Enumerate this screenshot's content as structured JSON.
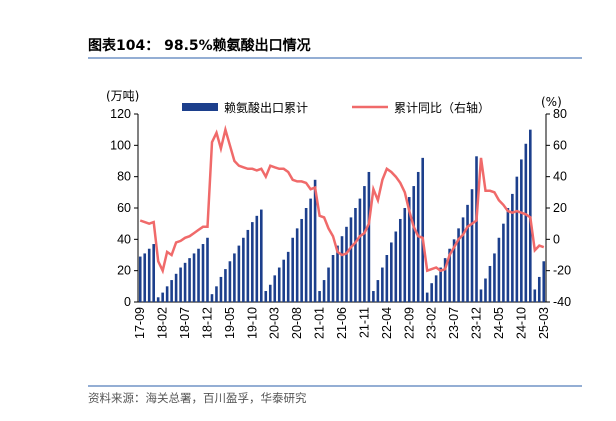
{
  "chart_data": {
    "type": "bar_line",
    "title": "图表104： 98.5%赖氨酸出口情况",
    "source": "资料来源：海关总署，百川盈孚，华泰研究",
    "y_label": "(万吨)",
    "y2_label": "(%)",
    "categories": [
      "17-09",
      null,
      null,
      null,
      null,
      "18-02",
      null,
      null,
      null,
      null,
      "18-07",
      null,
      null,
      null,
      null,
      "18-12",
      null,
      null,
      null,
      null,
      "19-05",
      null,
      null,
      null,
      null,
      "19-10",
      null,
      null,
      null,
      null,
      "20-03",
      null,
      null,
      null,
      null,
      "20-08",
      null,
      null,
      null,
      null,
      "21-01",
      null,
      null,
      null,
      null,
      "21-06",
      null,
      null,
      null,
      null,
      "21-11",
      null,
      null,
      null,
      null,
      "22-04",
      null,
      null,
      null,
      null,
      "22-09",
      null,
      null,
      null,
      null,
      "23-02",
      null,
      null,
      null,
      null,
      "23-07",
      null,
      null,
      null,
      null,
      "23-12",
      null,
      null,
      null,
      null,
      "24-05",
      null,
      null,
      null,
      null,
      "24-10",
      null,
      null,
      null,
      null,
      "25-03"
    ],
    "series": [
      {
        "name": "赖氨酸出口累计",
        "color": "#1c3f8c",
        "values": [
          29,
          31,
          34,
          37,
          3,
          6,
          10,
          14,
          18,
          22,
          25,
          28,
          31,
          34,
          37,
          41,
          5,
          10,
          16,
          21,
          26,
          31,
          36,
          41,
          46,
          51,
          55,
          59,
          7,
          11,
          17,
          22,
          27,
          32,
          41,
          47,
          53,
          60,
          66,
          78,
          7,
          14,
          22,
          30,
          36,
          42,
          48,
          54,
          60,
          66,
          74,
          83,
          7,
          14,
          22,
          30,
          38,
          45,
          53,
          60,
          67,
          74,
          83,
          92,
          6,
          12,
          17,
          22,
          28,
          34,
          40,
          47,
          54,
          62,
          72,
          93,
          8,
          15,
          23,
          31,
          41,
          50,
          60,
          69,
          80,
          91,
          101,
          110,
          8,
          16,
          26
        ]
      },
      {
        "name": "累计同比（右轴）",
        "color": "#f06a6a",
        "axis": "y2",
        "values": [
          12,
          11,
          10,
          11,
          -14,
          -20,
          -8,
          -10,
          -2,
          -1,
          1,
          2,
          4,
          6,
          8,
          8,
          62,
          68,
          58,
          70,
          60,
          50,
          47,
          46,
          45,
          45,
          44,
          45,
          40,
          47,
          46,
          45,
          45,
          43,
          38,
          37,
          37,
          36,
          32,
          33,
          15,
          14,
          7,
          2,
          -8,
          -10,
          -9,
          -5,
          -2,
          2,
          4,
          10,
          32,
          25,
          38,
          45,
          43,
          40,
          36,
          30,
          18,
          8,
          2,
          1,
          -20,
          -19,
          -18,
          -20,
          -19,
          -10,
          -5,
          0,
          3,
          8,
          10,
          12,
          52,
          31,
          31,
          30,
          25,
          22,
          18,
          17,
          18,
          17,
          16,
          14,
          -7,
          -4,
          -5
        ]
      }
    ],
    "ylim": [
      0,
      120
    ],
    "yticks": [
      0,
      20,
      40,
      60,
      80,
      100,
      120
    ],
    "y2lim": [
      -40,
      80
    ],
    "y2ticks": [
      -40,
      -20,
      0,
      20,
      40,
      60,
      80
    ]
  }
}
